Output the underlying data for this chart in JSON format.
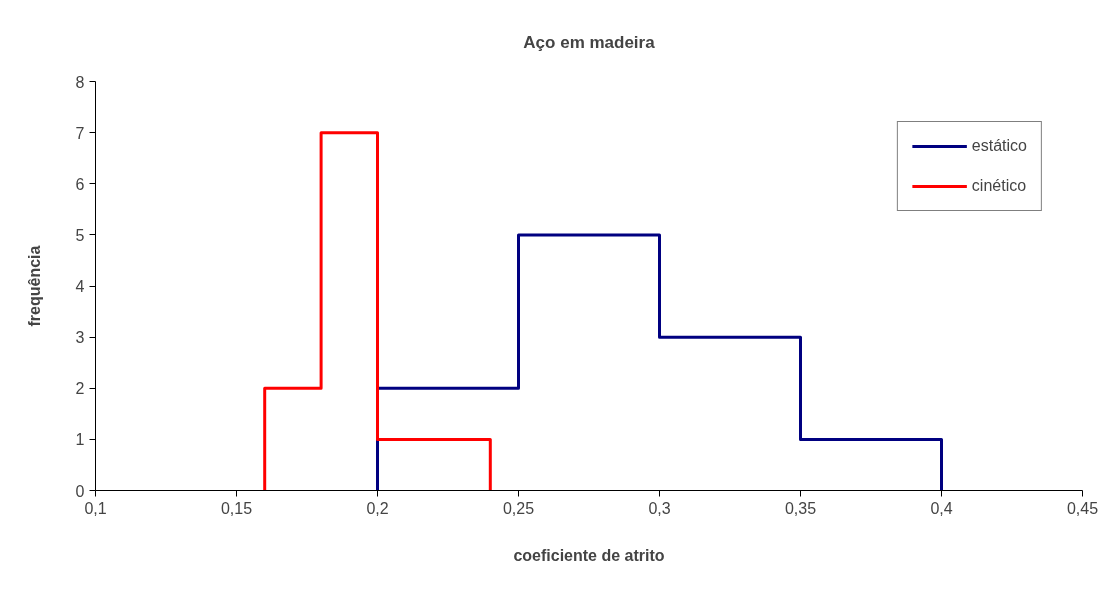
{
  "chart_data": {
    "type": "step",
    "title": "Aço em madeira",
    "xlabel": "coeficiente de atrito",
    "ylabel": "frequência",
    "series": [
      {
        "name": "estático",
        "color": "#000080",
        "x": [
          0.2,
          0.2,
          0.25,
          0.3,
          0.35,
          0.4,
          0.4
        ],
        "values": [
          0,
          2,
          5,
          3,
          1,
          1,
          0
        ]
      },
      {
        "name": "cinético",
        "color": "#ff0000",
        "x": [
          0.16,
          0.16,
          0.18,
          0.2,
          0.24,
          0.24
        ],
        "values": [
          0,
          2,
          7,
          1,
          1,
          0
        ]
      }
    ],
    "xlim": [
      0.1,
      0.45
    ],
    "xticks": [
      {
        "value": 0.1,
        "label": "0,1"
      },
      {
        "value": 0.15,
        "label": "0,15"
      },
      {
        "value": 0.2,
        "label": "0,2"
      },
      {
        "value": 0.25,
        "label": "0,25"
      },
      {
        "value": 0.3,
        "label": "0,3"
      },
      {
        "value": 0.35,
        "label": "0,35"
      },
      {
        "value": 0.4,
        "label": "0,4"
      },
      {
        "value": 0.45,
        "label": "0,45"
      }
    ],
    "ylim": [
      0,
      8
    ],
    "yticks": [
      0,
      1,
      2,
      3,
      4,
      5,
      6,
      7,
      8
    ],
    "grid": false,
    "legend": "top right"
  }
}
